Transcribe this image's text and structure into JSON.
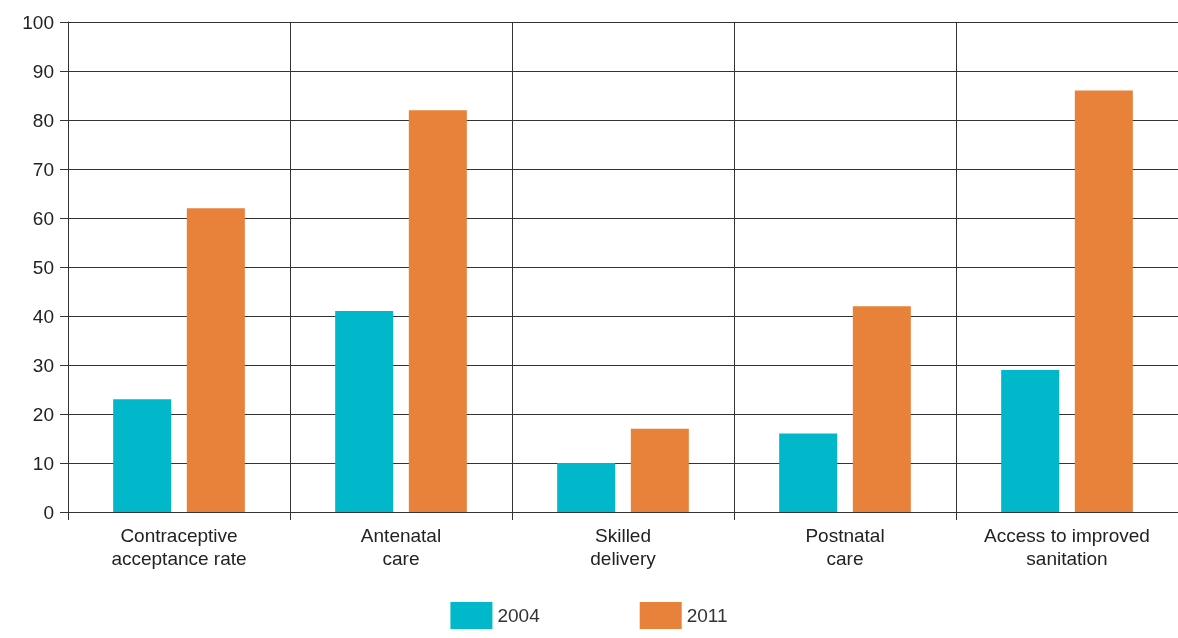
{
  "chart_data": {
    "type": "bar",
    "categories": [
      "Contraceptive\nacceptance rate",
      "Antenatal\ncare",
      "Skilled\ndelivery",
      "Postnatal\ncare",
      "Access to improved\nsanitation"
    ],
    "series": [
      {
        "name": "2004",
        "color": "#00b8c9",
        "values": [
          23,
          41,
          10,
          16,
          29
        ]
      },
      {
        "name": "2011",
        "color": "#e8813a",
        "values": [
          62,
          82,
          17,
          42,
          86
        ]
      }
    ],
    "ylim": [
      0,
      100
    ],
    "yticks": [
      0,
      10,
      20,
      30,
      40,
      50,
      60,
      70,
      80,
      90,
      100
    ],
    "grid": true,
    "legend": "bottom"
  }
}
